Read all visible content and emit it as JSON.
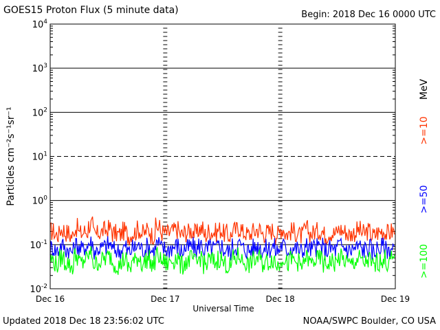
{
  "header": {
    "title": "GOES15 Proton Flux (5 minute data)",
    "begin": "Begin: 2018 Dec 16 0000 UTC"
  },
  "footer": {
    "updated": "Updated 2018 Dec 18 23:56:02 UTC",
    "credit": "NOAA/SWPC Boulder, CO USA"
  },
  "chart_data": {
    "type": "line",
    "title": "GOES15 Proton Flux (5 minute data)",
    "xlabel": "Universal Time",
    "ylabel": "Particles cm⁻²s⁻¹sr⁻¹",
    "yscale": "log",
    "ylim": [
      0.01,
      10000
    ],
    "xlim": [
      "Dec 16",
      "Dec 19"
    ],
    "x_ticks": [
      "Dec 16",
      "Dec 17",
      "Dec 18",
      "Dec 19"
    ],
    "y_ticks": [
      {
        "base": "10",
        "exp": "-2"
      },
      {
        "base": "10",
        "exp": "-1"
      },
      {
        "base": "10",
        "exp": "0"
      },
      {
        "base": "10",
        "exp": "1"
      },
      {
        "base": "10",
        "exp": "2"
      },
      {
        "base": "10",
        "exp": "3"
      },
      {
        "base": "10",
        "exp": "4"
      }
    ],
    "threshold_lines": [
      0.1,
      1,
      10,
      100,
      1000
    ],
    "units_label": "MeV",
    "grid": true,
    "legend_position": "right",
    "series": [
      {
        "name": ">=10",
        "color": "#ff3300",
        "values": [
          0.2,
          0.17,
          0.22,
          0.19,
          0.16,
          0.24,
          0.18,
          0.2,
          0.28,
          0.17,
          0.19,
          0.21,
          0.23,
          0.18,
          0.17,
          0.2,
          0.16,
          0.19,
          0.22,
          0.18,
          0.21,
          0.17,
          0.25,
          0.19,
          0.18,
          0.2,
          0.22,
          0.17,
          0.19,
          0.21,
          0.18,
          0.23,
          0.17,
          0.2,
          0.19,
          0.22,
          0.18,
          0.16,
          0.21,
          0.24,
          0.19,
          0.17,
          0.2,
          0.22,
          0.18,
          0.19,
          0.21,
          0.17,
          0.23,
          0.18,
          0.2,
          0.19,
          0.16,
          0.22,
          0.18,
          0.2,
          0.21,
          0.17,
          0.19,
          0.18,
          0.22,
          0.2,
          0.17,
          0.19,
          0.21,
          0.18,
          0.2,
          0.16,
          0.19,
          0.21,
          0.18,
          0.2
        ]
      },
      {
        "name": ">=50",
        "color": "#0000ff",
        "values": [
          0.085,
          0.075,
          0.095,
          0.08,
          0.07,
          0.1,
          0.078,
          0.09,
          0.11,
          0.074,
          0.082,
          0.09,
          0.1,
          0.076,
          0.072,
          0.088,
          0.07,
          0.083,
          0.095,
          0.078,
          0.09,
          0.074,
          0.105,
          0.081,
          0.077,
          0.087,
          0.095,
          0.073,
          0.082,
          0.09,
          0.078,
          0.098,
          0.074,
          0.086,
          0.081,
          0.094,
          0.077,
          0.07,
          0.09,
          0.1,
          0.082,
          0.074,
          0.086,
          0.094,
          0.078,
          0.081,
          0.09,
          0.074,
          0.097,
          0.077,
          0.086,
          0.082,
          0.07,
          0.093,
          0.078,
          0.086,
          0.09,
          0.074,
          0.082,
          0.078,
          0.094,
          0.086,
          0.074,
          0.082,
          0.09,
          0.078,
          0.086,
          0.07,
          0.082,
          0.09,
          0.078,
          0.086
        ]
      },
      {
        "name": ">=100",
        "color": "#00ff00",
        "values": [
          0.045,
          0.035,
          0.05,
          0.04,
          0.032,
          0.055,
          0.038,
          0.046,
          0.06,
          0.036,
          0.042,
          0.048,
          0.052,
          0.037,
          0.034,
          0.045,
          0.031,
          0.041,
          0.05,
          0.038,
          0.047,
          0.035,
          0.056,
          0.041,
          0.037,
          0.044,
          0.05,
          0.034,
          0.041,
          0.047,
          0.038,
          0.052,
          0.035,
          0.044,
          0.04,
          0.049,
          0.037,
          0.032,
          0.047,
          0.054,
          0.041,
          0.035,
          0.044,
          0.049,
          0.038,
          0.041,
          0.047,
          0.035,
          0.051,
          0.037,
          0.044,
          0.041,
          0.032,
          0.049,
          0.038,
          0.044,
          0.047,
          0.035,
          0.041,
          0.038,
          0.049,
          0.044,
          0.035,
          0.041,
          0.047,
          0.038,
          0.044,
          0.032,
          0.041,
          0.047,
          0.038,
          0.044
        ]
      }
    ]
  }
}
